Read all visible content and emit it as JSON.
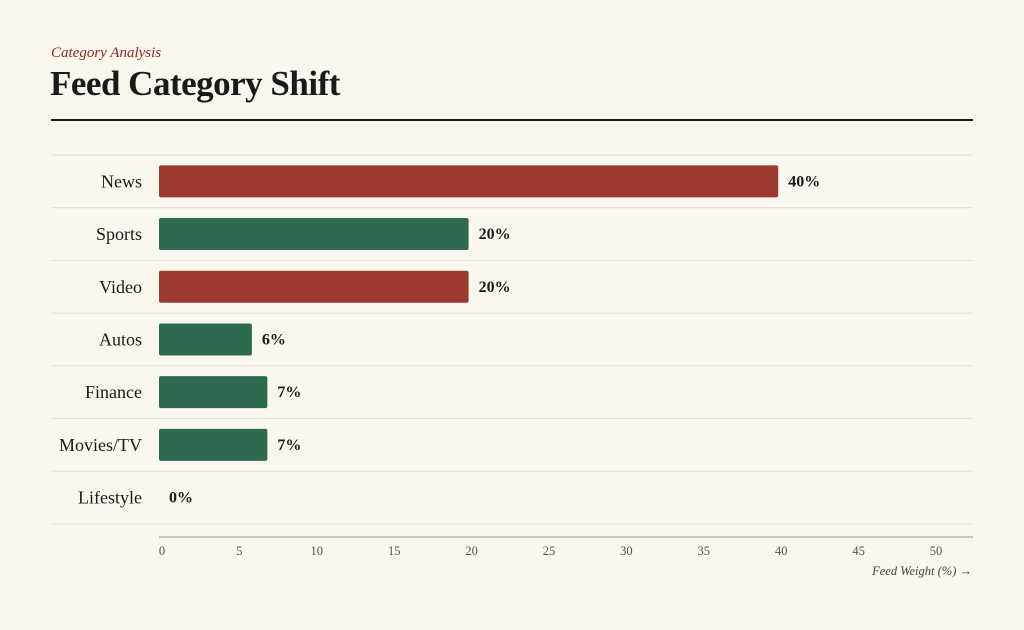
{
  "header": {
    "subtitle": "Category Analysis",
    "title": "Feed Category Shift"
  },
  "colors": {
    "background": "#f9f6ee",
    "accent_red": "#9c3a2f",
    "accent_green": "#2e6a50",
    "text": "#1a1a1a",
    "subtitle": "#8a2a22",
    "gridline": "#e2ded4",
    "axis": "#9a958a"
  },
  "chart_data": {
    "type": "bar",
    "orientation": "horizontal",
    "categories": [
      "News",
      "Sports",
      "Video",
      "Autos",
      "Finance",
      "Movies/TV",
      "Lifestyle"
    ],
    "values": [
      40,
      20,
      20,
      6,
      7,
      7,
      0
    ],
    "value_labels": [
      "40%",
      "20%",
      "20%",
      "6%",
      "7%",
      "7%",
      "0%"
    ],
    "bar_colors": [
      "#9c3a2f",
      "#2e6a50",
      "#9c3a2f",
      "#2e6a50",
      "#2e6a50",
      "#2e6a50",
      "#2e6a50"
    ],
    "x_ticks": [
      0,
      5,
      10,
      15,
      20,
      25,
      30,
      35,
      40,
      45,
      50
    ],
    "xlim": [
      0,
      55
    ],
    "xlabel": "Feed Weight (%) →",
    "grid": "horizontal row separators"
  }
}
